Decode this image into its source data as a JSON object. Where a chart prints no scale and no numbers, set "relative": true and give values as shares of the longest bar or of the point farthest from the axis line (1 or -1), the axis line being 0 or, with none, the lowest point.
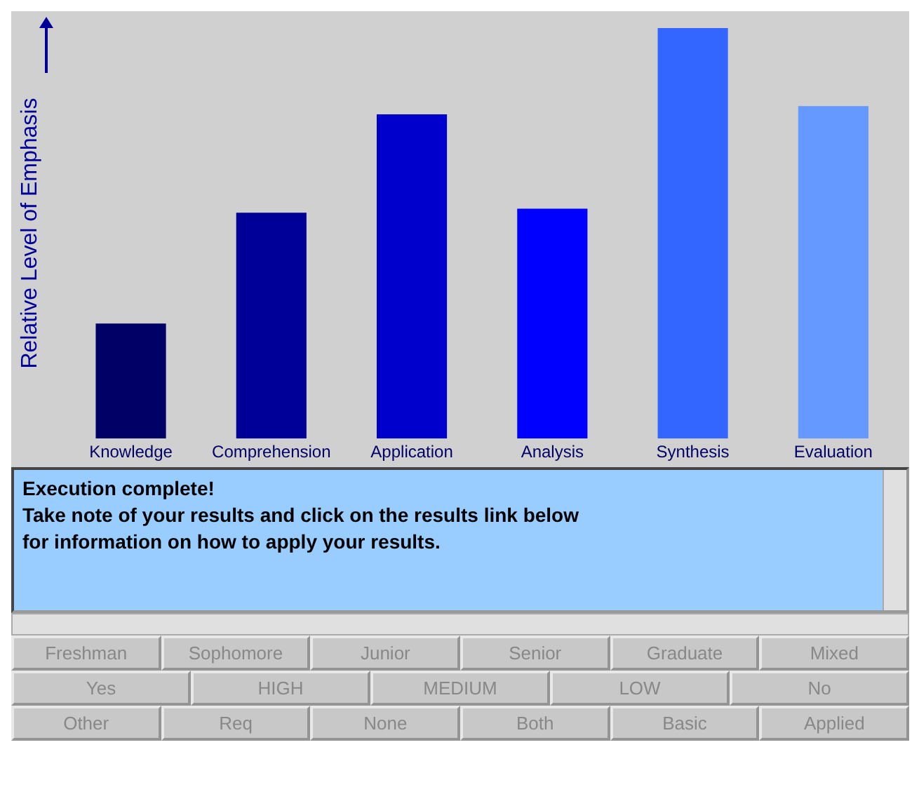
{
  "chart_data": {
    "type": "bar",
    "relative": true,
    "ylabel": "Relative Level of Emphasis",
    "categories": [
      "Knowledge",
      "Comprehension",
      "Application",
      "Analysis",
      "Synthesis",
      "Evaluation"
    ],
    "values": [
      0.28,
      0.55,
      0.79,
      0.56,
      1,
      0.81
    ],
    "colors": [
      "#000066",
      "#000099",
      "#0000cc",
      "#0000ff",
      "#3366ff",
      "#6699ff"
    ],
    "grid": false,
    "legend": false,
    "annotations": [
      "Execution complete!",
      "Take note of your results and click on the results link below",
      "for information on how to apply your results.",
      "Freshman",
      "Sophomore",
      "Junior",
      "Senior",
      "Graduate",
      "Mixed",
      "Yes",
      "HIGH",
      "MEDIUM",
      "LOW",
      "No",
      "Other",
      "Req",
      "None",
      "Both",
      "Basic",
      "Applied"
    ]
  }
}
